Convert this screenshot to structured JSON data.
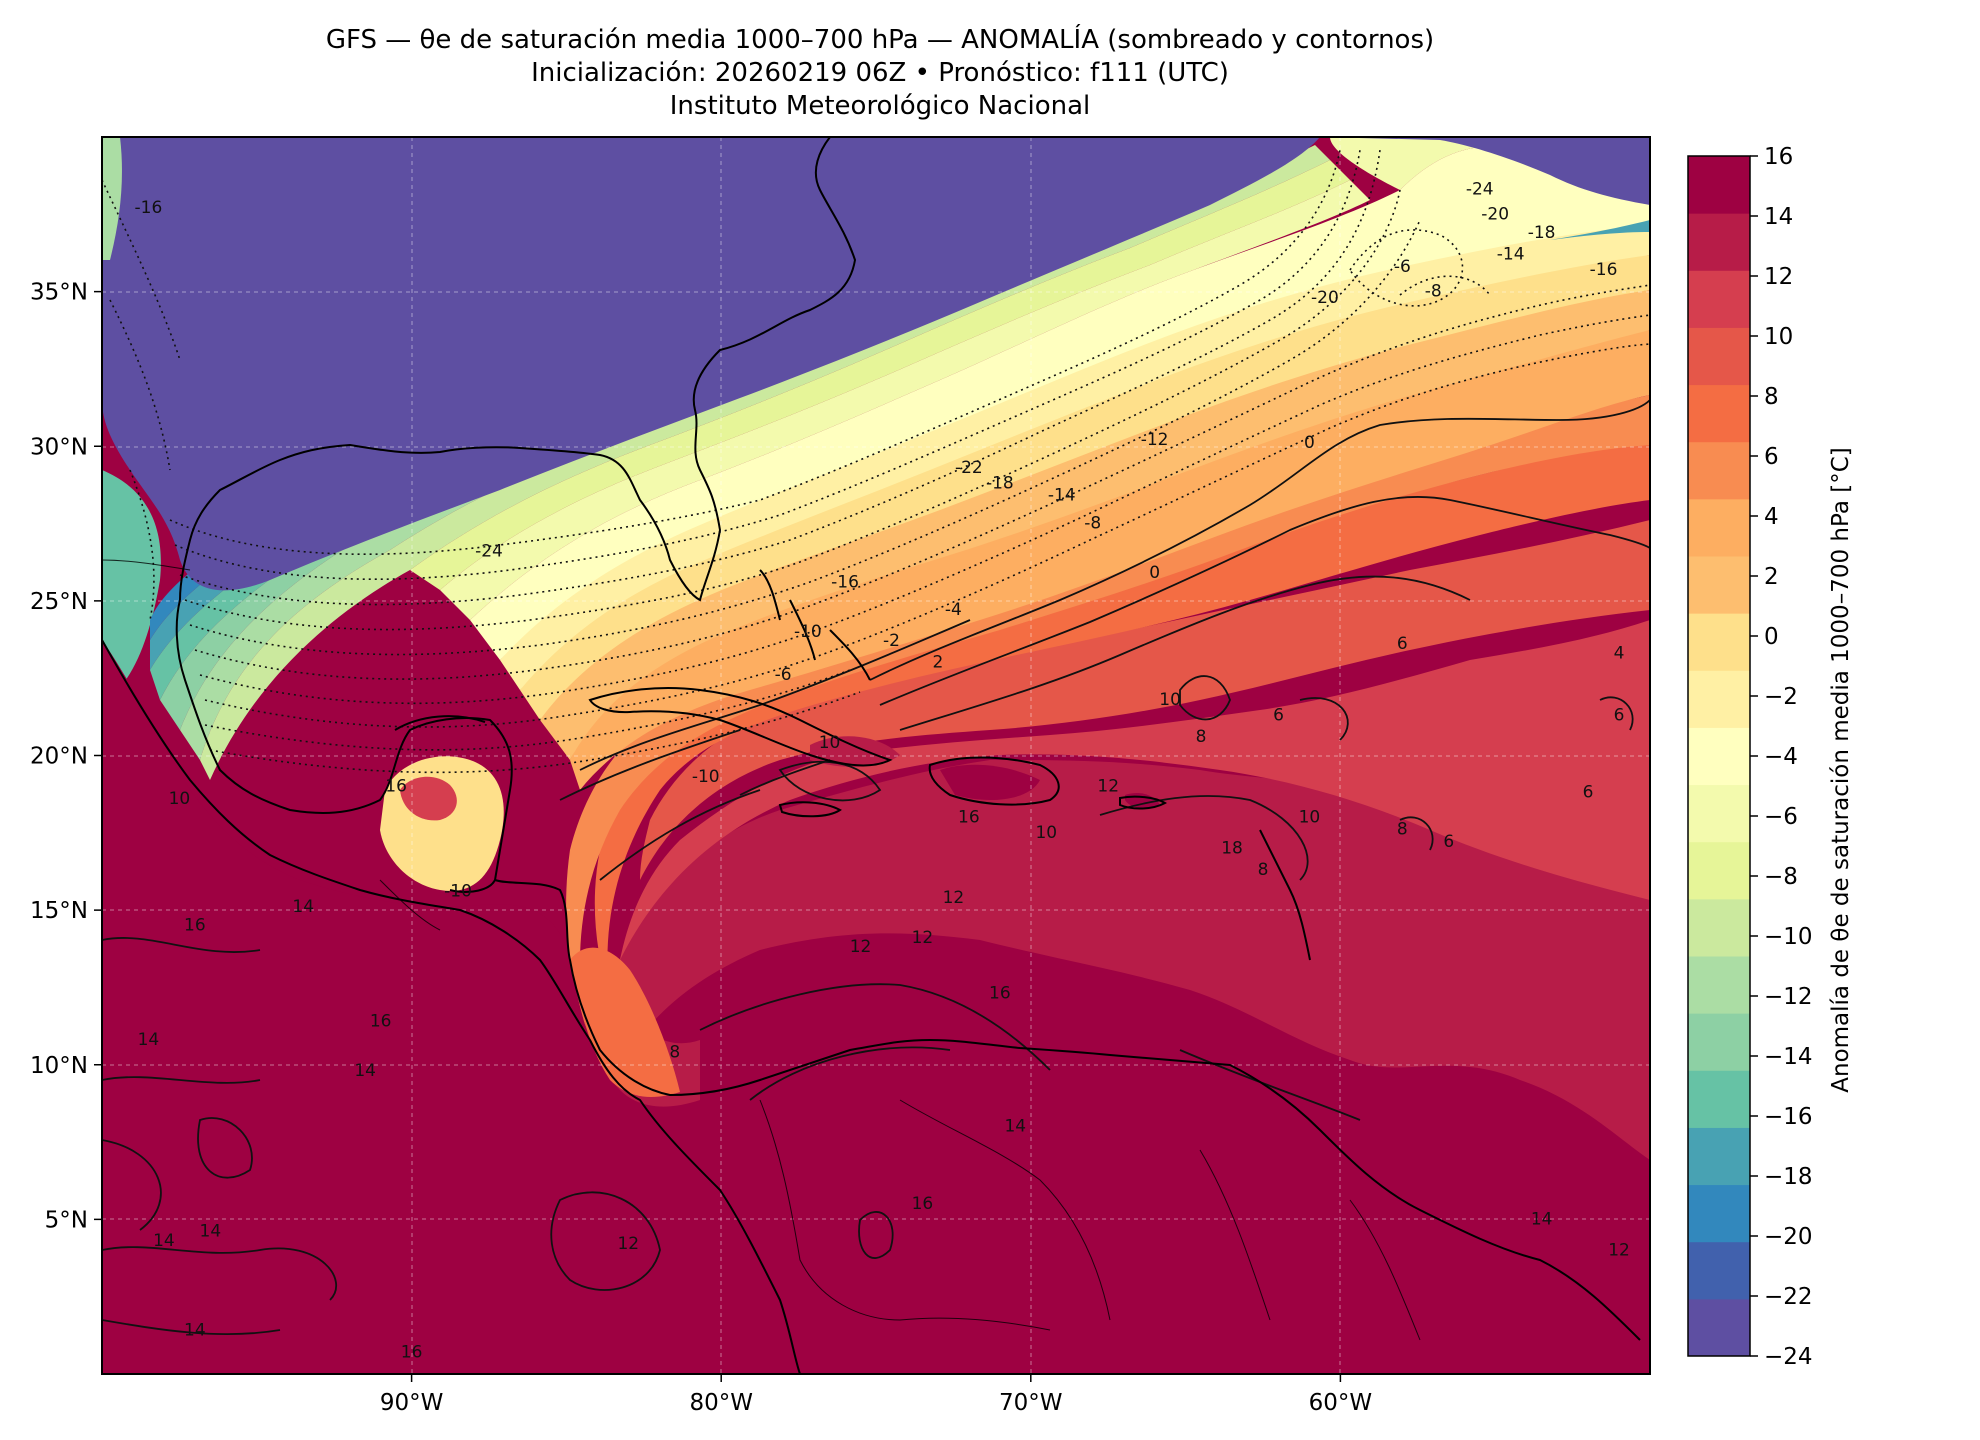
{
  "header": {
    "title": "GFS — θe de saturación media 1000–700 hPa — ANOMALÍA (sombreado y contornos)",
    "subtitle": "Inicialización: 20260219 06Z   •   Pronóstico: f111 (UTC)",
    "institution": "Instituto Meteorológico Nacional"
  },
  "map": {
    "lon_range": [
      -100,
      -50
    ],
    "lat_range": [
      0,
      40
    ],
    "x_ticks": [
      {
        "lon": -90,
        "label": "90°W"
      },
      {
        "lon": -80,
        "label": "80°W"
      },
      {
        "lon": -70,
        "label": "70°W"
      },
      {
        "lon": -60,
        "label": "60°W"
      }
    ],
    "y_ticks": [
      {
        "lat": 35,
        "label": "35°N"
      },
      {
        "lat": 30,
        "label": "30°N"
      },
      {
        "lat": 25,
        "label": "25°N"
      },
      {
        "lat": 20,
        "label": "20°N"
      },
      {
        "lat": 15,
        "label": "15°N"
      },
      {
        "lat": 10,
        "label": "10°N"
      },
      {
        "lat": 5,
        "label": "5°N"
      }
    ],
    "gridlines": true,
    "contour_labels": [
      {
        "lon": -87.5,
        "lat": 26.6,
        "text": "-24"
      },
      {
        "lon": -72.0,
        "lat": 29.3,
        "text": "-22"
      },
      {
        "lon": -60.5,
        "lat": 34.8,
        "text": "-20"
      },
      {
        "lon": -71.0,
        "lat": 28.8,
        "text": "-18"
      },
      {
        "lon": -69.0,
        "lat": 28.4,
        "text": "-14"
      },
      {
        "lon": -66.0,
        "lat": 30.2,
        "text": "-12"
      },
      {
        "lon": -68.0,
        "lat": 27.5,
        "text": "-8"
      },
      {
        "lon": -66.0,
        "lat": 25.9,
        "text": "0"
      },
      {
        "lon": -61.0,
        "lat": 30.1,
        "text": "0"
      },
      {
        "lon": -72.5,
        "lat": 24.7,
        "text": "-4"
      },
      {
        "lon": -74.5,
        "lat": 23.7,
        "text": "-2"
      },
      {
        "lon": -73.0,
        "lat": 23.0,
        "text": "2"
      },
      {
        "lon": -76.0,
        "lat": 25.6,
        "text": "-16"
      },
      {
        "lon": -77.2,
        "lat": 24.0,
        "text": "-10"
      },
      {
        "lon": -78.0,
        "lat": 22.6,
        "text": "-6"
      },
      {
        "lon": -58.0,
        "lat": 35.8,
        "text": "-6"
      },
      {
        "lon": -57.0,
        "lat": 35.0,
        "text": "-8"
      },
      {
        "lon": -55.5,
        "lat": 38.3,
        "text": "-24"
      },
      {
        "lon": -55.0,
        "lat": 37.5,
        "text": "-20"
      },
      {
        "lon": -53.5,
        "lat": 36.9,
        "text": "-18"
      },
      {
        "lon": -54.5,
        "lat": 36.2,
        "text": "-14"
      },
      {
        "lon": -51.5,
        "lat": 35.7,
        "text": "-16"
      },
      {
        "lon": -98.5,
        "lat": 37.7,
        "text": "-16"
      },
      {
        "lon": -58.0,
        "lat": 23.6,
        "text": "6"
      },
      {
        "lon": -51.0,
        "lat": 23.3,
        "text": "4"
      },
      {
        "lon": -65.5,
        "lat": 21.8,
        "text": "10"
      },
      {
        "lon": -64.5,
        "lat": 20.6,
        "text": "8"
      },
      {
        "lon": -62.0,
        "lat": 21.3,
        "text": "6"
      },
      {
        "lon": -51.0,
        "lat": 21.3,
        "text": "6"
      },
      {
        "lon": -52.0,
        "lat": 18.8,
        "text": "6"
      },
      {
        "lon": -56.5,
        "lat": 17.2,
        "text": "6"
      },
      {
        "lon": -61.0,
        "lat": 18.0,
        "text": "10"
      },
      {
        "lon": -58.0,
        "lat": 17.6,
        "text": "8"
      },
      {
        "lon": -76.5,
        "lat": 20.4,
        "text": "10"
      },
      {
        "lon": -69.5,
        "lat": 17.5,
        "text": "10"
      },
      {
        "lon": -67.5,
        "lat": 19.0,
        "text": "12"
      },
      {
        "lon": -72.0,
        "lat": 18.0,
        "text": "16"
      },
      {
        "lon": -63.5,
        "lat": 17.0,
        "text": "18"
      },
      {
        "lon": -62.5,
        "lat": 16.3,
        "text": "8"
      },
      {
        "lon": -72.5,
        "lat": 15.4,
        "text": "12"
      },
      {
        "lon": -73.5,
        "lat": 14.1,
        "text": "12"
      },
      {
        "lon": -75.5,
        "lat": 13.8,
        "text": "12"
      },
      {
        "lon": -71.0,
        "lat": 12.3,
        "text": "16"
      },
      {
        "lon": -80.5,
        "lat": 19.3,
        "text": "-10"
      },
      {
        "lon": -88.5,
        "lat": 15.6,
        "text": "-10"
      },
      {
        "lon": -97.5,
        "lat": 18.6,
        "text": "10"
      },
      {
        "lon": -90.5,
        "lat": 19.0,
        "text": "16"
      },
      {
        "lon": -93.5,
        "lat": 15.1,
        "text": "14"
      },
      {
        "lon": -97.0,
        "lat": 14.5,
        "text": "16"
      },
      {
        "lon": -98.5,
        "lat": 10.8,
        "text": "14"
      },
      {
        "lon": -91.0,
        "lat": 11.4,
        "text": "16"
      },
      {
        "lon": -91.5,
        "lat": 9.8,
        "text": "14"
      },
      {
        "lon": -98.0,
        "lat": 4.3,
        "text": "14"
      },
      {
        "lon": -96.5,
        "lat": 4.6,
        "text": "14"
      },
      {
        "lon": -83.0,
        "lat": 4.2,
        "text": "12"
      },
      {
        "lon": -73.5,
        "lat": 5.5,
        "text": "16"
      },
      {
        "lon": -70.5,
        "lat": 8.0,
        "text": "14"
      },
      {
        "lon": -53.5,
        "lat": 5.0,
        "text": "14"
      },
      {
        "lon": -51.0,
        "lat": 4.0,
        "text": "12"
      },
      {
        "lon": -97.0,
        "lat": 1.4,
        "text": "14"
      },
      {
        "lon": -90.0,
        "lat": 0.7,
        "text": "16"
      },
      {
        "lon": -81.5,
        "lat": 10.4,
        "text": "8"
      }
    ]
  },
  "colorbar": {
    "label": "Anomalía de θe de saturación media 1000–700 hPa [°C]",
    "levels": [
      -24,
      -22,
      -20,
      -18,
      -16,
      -14,
      -12,
      -10,
      -8,
      -6,
      -4,
      -2,
      0,
      2,
      4,
      6,
      8,
      10,
      12,
      14,
      16
    ],
    "tick_labels": [
      "16",
      "14",
      "12",
      "10",
      "8",
      "6",
      "4",
      "2",
      "0",
      "−2",
      "−4",
      "−6",
      "−8",
      "−10",
      "−12",
      "−14",
      "−16",
      "−18",
      "−20",
      "−22",
      "−24"
    ],
    "colors": [
      "#5e4fa2",
      "#4161ad",
      "#3288bd",
      "#48a2b3",
      "#66c2a5",
      "#8dd0a4",
      "#abdda4",
      "#cbe99e",
      "#e6f598",
      "#f3faad",
      "#ffffbf",
      "#fff0a4",
      "#fee08b",
      "#fdbe6f",
      "#fdae61",
      "#f88c51",
      "#f46d43",
      "#e55749",
      "#d53e4f",
      "#b71c48",
      "#9e0142"
    ]
  }
}
